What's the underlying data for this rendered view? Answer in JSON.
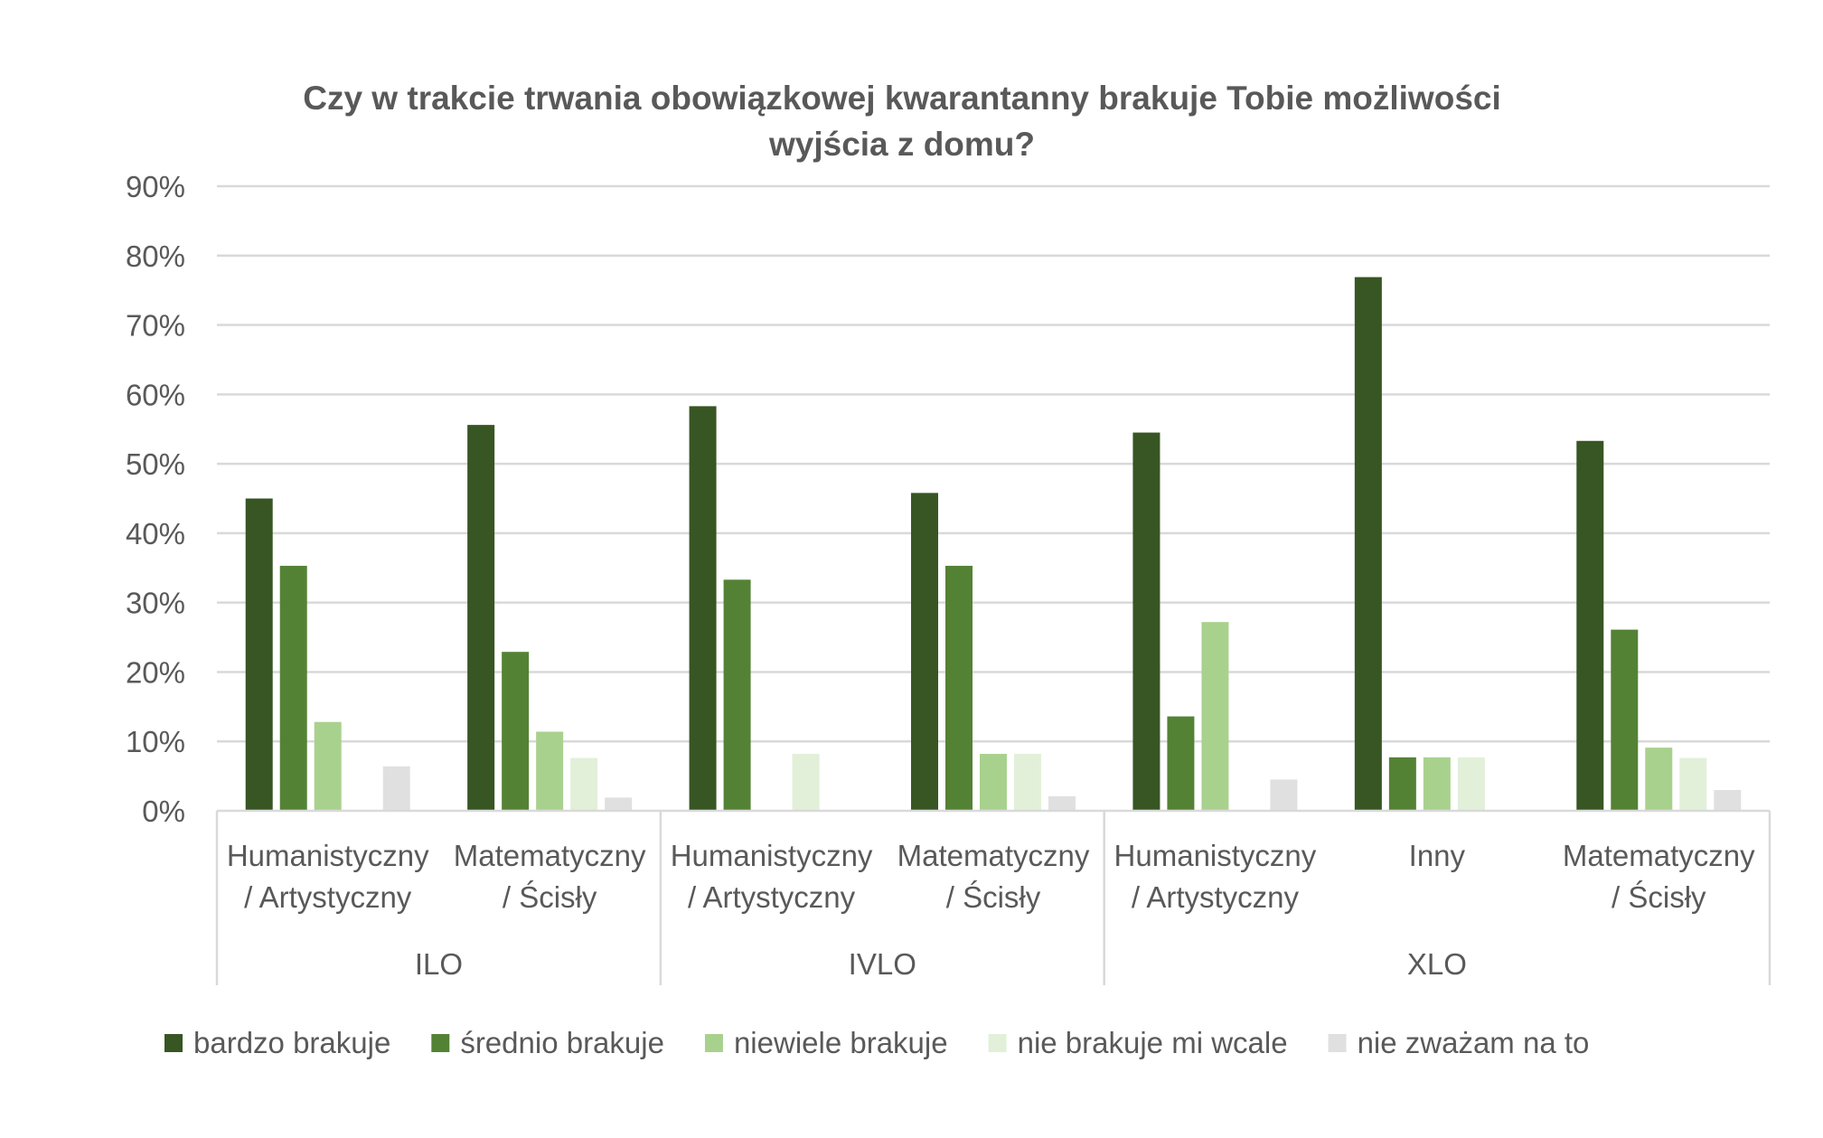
{
  "chart_data": {
    "type": "bar",
    "title_lines": [
      "Czy w trakcie trwania obowiązkowej kwarantanny brakuje Tobie możliwości",
      "wyjścia z domu?"
    ],
    "ylim": [
      0,
      90
    ],
    "y_ticks": [
      "0%",
      "10%",
      "20%",
      "30%",
      "40%",
      "50%",
      "60%",
      "70%",
      "80%",
      "90%"
    ],
    "grid": true,
    "legend_position": "bottom",
    "groups": [
      {
        "label": "ILO",
        "categories": [
          {
            "lines": [
              "Humanistyczny",
              "/ Artystyczny"
            ]
          },
          {
            "lines": [
              "Matematyczny",
              "/ Ścisły"
            ]
          }
        ]
      },
      {
        "label": "IVLO",
        "categories": [
          {
            "lines": [
              "Humanistyczny",
              "/ Artystyczny"
            ]
          },
          {
            "lines": [
              "Matematyczny",
              "/ Ścisły"
            ]
          }
        ]
      },
      {
        "label": "XLO",
        "categories": [
          {
            "lines": [
              "Humanistyczny",
              "/ Artystyczny"
            ]
          },
          {
            "lines": [
              "Inny"
            ]
          },
          {
            "lines": [
              "Matematyczny",
              "/ Ścisły"
            ]
          }
        ]
      }
    ],
    "series": [
      {
        "name": "bardzo brakuje",
        "color": "#375623",
        "values": [
          45,
          55.6,
          58.3,
          45.8,
          54.5,
          76.9,
          53.3
        ]
      },
      {
        "name": "średnio brakuje",
        "color": "#548235",
        "values": [
          35.3,
          22.9,
          33.3,
          35.3,
          13.6,
          7.7,
          26.1
        ]
      },
      {
        "name": "niewiele brakuje",
        "color": "#A9D18E",
        "values": [
          12.8,
          11.4,
          0,
          8.2,
          27.2,
          7.7,
          9.1
        ]
      },
      {
        "name": "nie brakuje mi wcale",
        "color": "#E2F0D9",
        "values": [
          0,
          7.6,
          8.2,
          8.2,
          0,
          7.7,
          7.6
        ]
      },
      {
        "name": "nie zważam na to",
        "color": "#E0E0E0",
        "values": [
          6.4,
          1.9,
          0,
          2.1,
          4.5,
          0,
          3.0
        ]
      }
    ]
  }
}
